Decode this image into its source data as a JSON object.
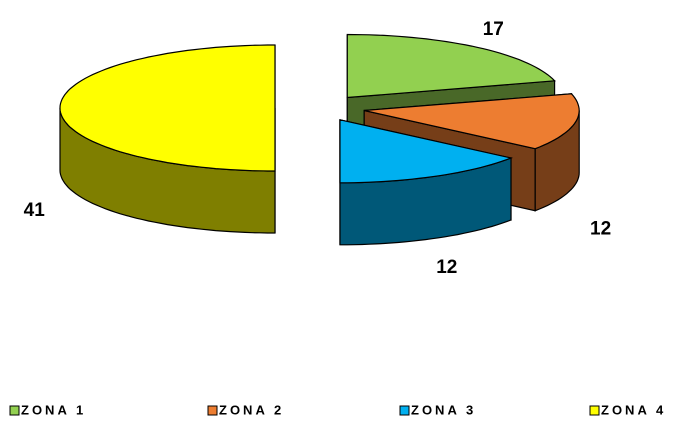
{
  "chart_data": {
    "type": "pie3d",
    "categories": [
      "ZONA 1",
      "ZONA 2",
      "ZONA 3",
      "ZONA 4"
    ],
    "values": [
      17,
      12,
      12,
      41
    ],
    "colors": [
      "#92d050",
      "#ed7d31",
      "#00b0f0",
      "#ffff00"
    ],
    "legend": "bottom"
  }
}
